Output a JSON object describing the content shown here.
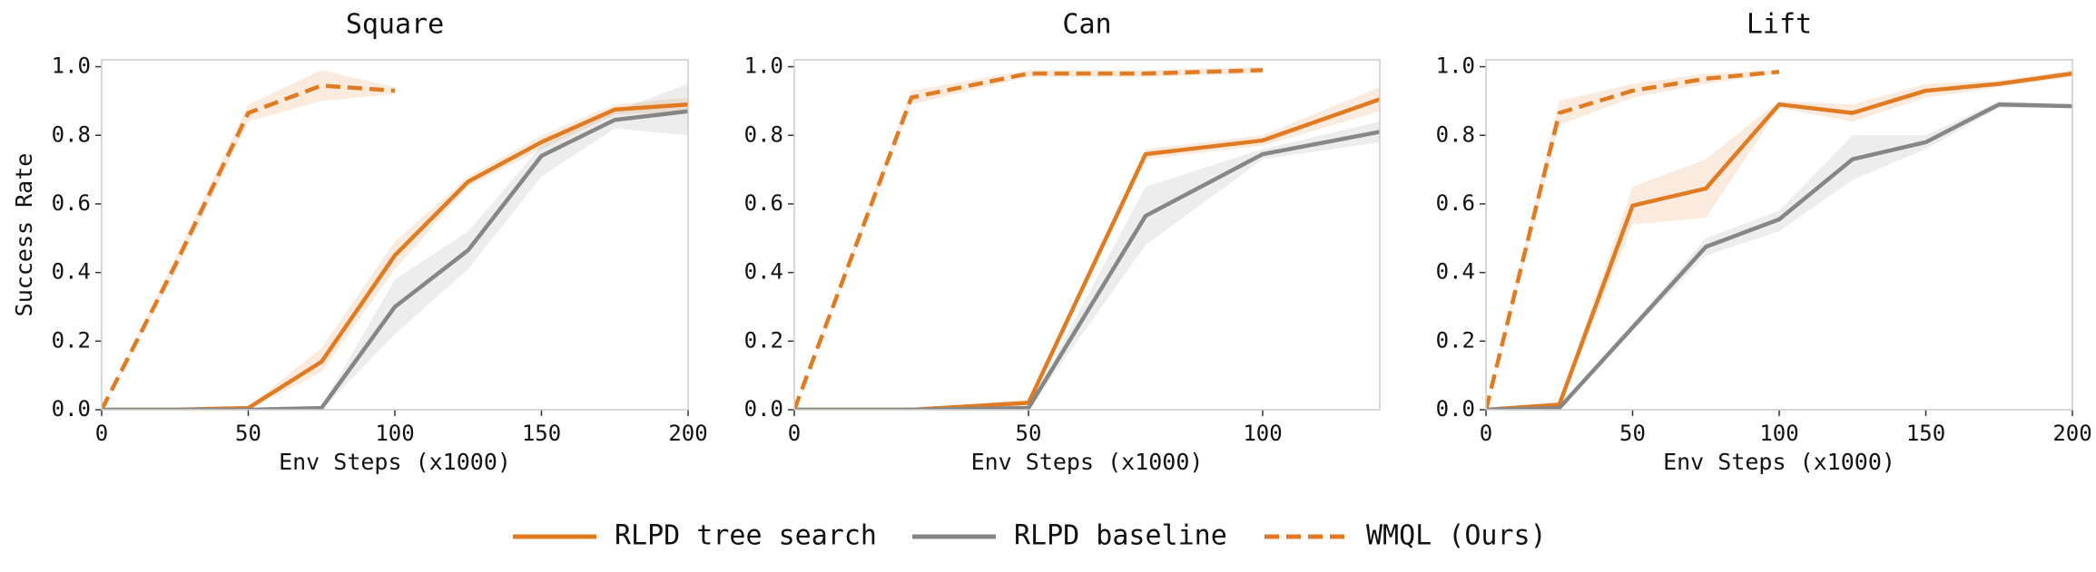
{
  "chart_data": [
    {
      "type": "line",
      "title": "Square",
      "xlabel": "Env Steps (x1000)",
      "ylabel": "Success Rate",
      "xlim": [
        0,
        200
      ],
      "xticks": [
        0,
        50,
        100,
        150,
        200
      ],
      "ylim": [
        0,
        1.02
      ],
      "yticks": [
        {
          "value": 0,
          "label": "0.0"
        },
        0.2,
        0.4,
        0.6,
        0.8,
        {
          "value": 1,
          "label": "1.0"
        }
      ],
      "series": [
        {
          "name": "RLPD tree search",
          "color": "#e07b22",
          "style": "solid",
          "x": [
            0,
            25,
            50,
            75,
            100,
            125,
            150,
            175,
            200
          ],
          "values": [
            0,
            0,
            0.005,
            0.14,
            0.45,
            0.665,
            0.78,
            0.875,
            0.89
          ],
          "lower": [
            0,
            0,
            0,
            0.11,
            0.41,
            0.65,
            0.76,
            0.86,
            0.87
          ],
          "upper": [
            0,
            0,
            0.01,
            0.18,
            0.49,
            0.68,
            0.8,
            0.89,
            0.91
          ]
        },
        {
          "name": "RLPD baseline",
          "color": "#868686",
          "style": "solid",
          "x": [
            0,
            25,
            50,
            75,
            100,
            125,
            150,
            175,
            200
          ],
          "values": [
            0,
            0,
            0,
            0.005,
            0.3,
            0.465,
            0.74,
            0.845,
            0.87
          ],
          "lower": [
            0,
            0,
            0,
            0,
            0.22,
            0.41,
            0.68,
            0.82,
            0.8
          ],
          "upper": [
            0,
            0,
            0,
            0.01,
            0.38,
            0.52,
            0.77,
            0.87,
            0.95
          ]
        },
        {
          "name": "WMQL (Ours)",
          "color": "#e07b22",
          "style": "dashed",
          "x": [
            0,
            25,
            50,
            75,
            100
          ],
          "values": [
            0,
            0.42,
            0.865,
            0.945,
            0.93
          ],
          "lower": [
            0,
            0.4,
            0.84,
            0.9,
            0.92
          ],
          "upper": [
            0,
            0.44,
            0.89,
            0.99,
            0.94
          ]
        }
      ]
    },
    {
      "type": "line",
      "title": "Can",
      "xlabel": "Env Steps (x1000)",
      "xlim": [
        0,
        125
      ],
      "xticks": [
        0,
        50,
        100
      ],
      "ylim": [
        0,
        1.02
      ],
      "yticks": [
        {
          "value": 0,
          "label": "0.0"
        },
        0.2,
        0.4,
        0.6,
        0.8,
        {
          "value": 1,
          "label": "1.0"
        }
      ],
      "series": [
        {
          "name": "RLPD tree search",
          "color": "#e07b22",
          "style": "solid",
          "x": [
            0,
            25,
            50,
            75,
            100,
            125
          ],
          "values": [
            0,
            0,
            0.02,
            0.745,
            0.785,
            0.905
          ],
          "lower": [
            0,
            0,
            0.01,
            0.73,
            0.77,
            0.87
          ],
          "upper": [
            0,
            0,
            0.03,
            0.76,
            0.8,
            0.94
          ]
        },
        {
          "name": "RLPD baseline",
          "color": "#868686",
          "style": "solid",
          "x": [
            0,
            25,
            50,
            75,
            100,
            125
          ],
          "values": [
            0,
            0,
            0.005,
            0.565,
            0.745,
            0.81
          ],
          "lower": [
            0,
            0,
            0,
            0.48,
            0.73,
            0.78
          ],
          "upper": [
            0,
            0,
            0.01,
            0.65,
            0.76,
            0.84
          ]
        },
        {
          "name": "WMQL (Ours)",
          "color": "#e07b22",
          "style": "dashed",
          "x": [
            0,
            25,
            50,
            75,
            100
          ],
          "values": [
            0,
            0.91,
            0.98,
            0.98,
            0.99
          ],
          "lower": [
            0,
            0.89,
            0.97,
            0.97,
            0.98
          ],
          "upper": [
            0,
            0.93,
            0.99,
            0.99,
            1
          ]
        }
      ]
    },
    {
      "type": "line",
      "title": "Lift",
      "xlabel": "Env Steps (x1000)",
      "xlim": [
        0,
        200
      ],
      "xticks": [
        0,
        50,
        100,
        150,
        200
      ],
      "ylim": [
        0,
        1.02
      ],
      "yticks": [
        {
          "value": 0,
          "label": "0.0"
        },
        0.2,
        0.4,
        0.6,
        0.8,
        {
          "value": 1,
          "label": "1.0"
        }
      ],
      "series": [
        {
          "name": "RLPD tree search",
          "color": "#e07b22",
          "style": "solid",
          "x": [
            0,
            25,
            50,
            75,
            100,
            125,
            150,
            175,
            200
          ],
          "values": [
            0,
            0.015,
            0.595,
            0.645,
            0.89,
            0.865,
            0.93,
            0.95,
            0.98
          ],
          "lower": [
            0,
            0.01,
            0.54,
            0.56,
            0.88,
            0.84,
            0.91,
            0.94,
            0.97
          ],
          "upper": [
            0,
            0.02,
            0.65,
            0.73,
            0.9,
            0.89,
            0.95,
            0.96,
            0.99
          ]
        },
        {
          "name": "RLPD baseline",
          "color": "#868686",
          "style": "solid",
          "x": [
            0,
            25,
            50,
            75,
            100,
            125,
            150,
            175,
            200
          ],
          "values": [
            0,
            0.005,
            0.24,
            0.475,
            0.555,
            0.73,
            0.78,
            0.89,
            0.885
          ],
          "lower": [
            0,
            0,
            0.23,
            0.45,
            0.52,
            0.67,
            0.76,
            0.88,
            0.88
          ],
          "upper": [
            0,
            0.01,
            0.25,
            0.5,
            0.58,
            0.8,
            0.8,
            0.9,
            0.89
          ]
        },
        {
          "name": "WMQL (Ours)",
          "color": "#e07b22",
          "style": "dashed",
          "x": [
            0,
            25,
            50,
            75,
            100
          ],
          "values": [
            0,
            0.865,
            0.93,
            0.965,
            0.985
          ],
          "lower": [
            0,
            0.83,
            0.91,
            0.95,
            0.98
          ],
          "upper": [
            0,
            0.9,
            0.95,
            0.98,
            0.99
          ]
        }
      ]
    }
  ]
}
